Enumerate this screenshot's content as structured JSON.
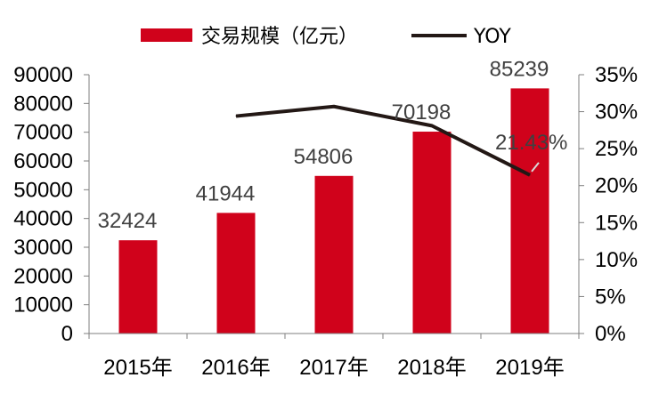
{
  "chart_data": {
    "type": "bar",
    "categories": [
      "2015年",
      "2016年",
      "2017年",
      "2018年",
      "2019年"
    ],
    "series": [
      {
        "name": "交易规模（亿元）",
        "type": "bar",
        "axis": "left",
        "color": "#d0021b",
        "values": [
          32424,
          41944,
          54806,
          70198,
          85239
        ]
      },
      {
        "name": "YOY",
        "type": "line",
        "axis": "right",
        "color": "#231815",
        "values": [
          null,
          29.4,
          30.7,
          28.1,
          21.43
        ]
      }
    ],
    "data_labels": [
      "32424",
      "41944",
      "54806",
      "70198",
      "85239"
    ],
    "line_labels": [
      "21.43%"
    ],
    "y_left": {
      "lim": [
        0,
        90000
      ],
      "ticks": [
        "0",
        "10000",
        "20000",
        "30000",
        "40000",
        "50000",
        "60000",
        "70000",
        "80000",
        "90000"
      ]
    },
    "y_right": {
      "lim": [
        0,
        35
      ],
      "ticks": [
        "0%",
        "5%",
        "10%",
        "15%",
        "20%",
        "25%",
        "30%",
        "35%"
      ]
    },
    "legend_position": "top",
    "grid": false
  }
}
